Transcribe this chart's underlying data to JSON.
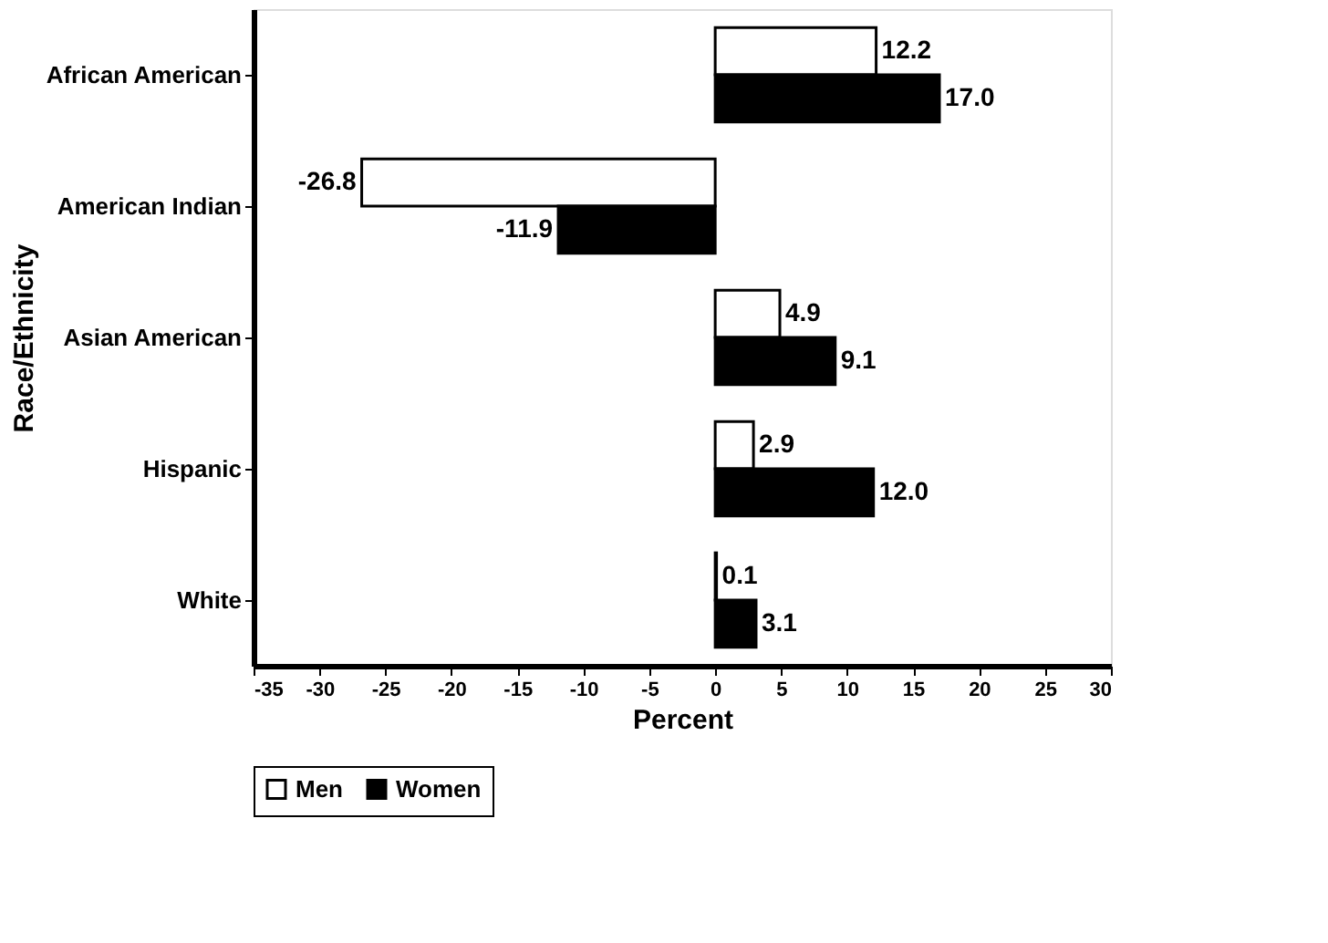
{
  "chart_data": {
    "type": "bar",
    "orientation": "horizontal",
    "xlabel": "Percent",
    "ylabel": "Race/Ethnicity",
    "categories": [
      "African American",
      "American Indian",
      "Asian American",
      "Hispanic",
      "White"
    ],
    "series": [
      {
        "name": "Men",
        "color": "#ffffff",
        "values": [
          12.2,
          -26.8,
          4.9,
          2.9,
          0.1
        ],
        "value_labels": [
          "12.2",
          "-26.8",
          "4.9",
          "2.9",
          "0.1"
        ]
      },
      {
        "name": "Women",
        "color": "#000000",
        "values": [
          17.0,
          -11.9,
          9.1,
          12.0,
          3.1
        ],
        "value_labels": [
          "17.0",
          "-11.9",
          "9.1",
          "12.0",
          "3.1"
        ]
      }
    ],
    "xlim": [
      -35,
      30
    ],
    "xticks": [
      -35,
      -30,
      -25,
      -20,
      -15,
      -10,
      -5,
      0,
      5,
      10,
      15,
      20,
      25,
      30
    ],
    "grid": false,
    "legend": "bottom"
  }
}
